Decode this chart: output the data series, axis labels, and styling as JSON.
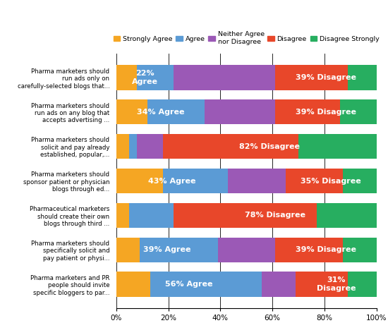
{
  "categories": [
    "Pharma marketers should\nrun ads only on\ncarefully-selected blogs that...",
    "Pharma marketers should\nrun ads on any blog that\naccepts advertising ...",
    "Pharma marketers should\nsolicit and pay already\nestablished, popular,...",
    "Pharma marketers should\nsponsor patient or physician\nblogs through ed...",
    "Pharmaceutical marketers\nshould create their own\nblogs through third ...",
    "Pharma marketers should\nspecifically solicit and\npay patient or physi...",
    "Pharma marketers and PR\npeople should invite\nspecific bloggers to par..."
  ],
  "segments": [
    {
      "strongly_agree": 8,
      "agree": 14,
      "neither": 39,
      "disagree": 28,
      "disagree_strongly": 11
    },
    {
      "strongly_agree": 12,
      "agree": 22,
      "neither": 27,
      "disagree": 25,
      "disagree_strongly": 14
    },
    {
      "strongly_agree": 5,
      "agree": 3,
      "neither": 10,
      "disagree": 52,
      "disagree_strongly": 30
    },
    {
      "strongly_agree": 18,
      "agree": 25,
      "neither": 22,
      "disagree": 22,
      "disagree_strongly": 13
    },
    {
      "strongly_agree": 5,
      "agree": 17,
      "neither": 0,
      "disagree": 55,
      "disagree_strongly": 23
    },
    {
      "strongly_agree": 9,
      "agree": 30,
      "neither": 22,
      "disagree": 26,
      "disagree_strongly": 13
    },
    {
      "strongly_agree": 13,
      "agree": 43,
      "neither": 13,
      "disagree": 20,
      "disagree_strongly": 11
    }
  ],
  "colors": {
    "strongly_agree": "#F5A623",
    "agree": "#5B9BD5",
    "neither": "#9B59B6",
    "disagree": "#E8472A",
    "disagree_strongly": "#27AE60"
  },
  "annotations": [
    {
      "bar": 0,
      "agree_pct": "22%\nAgree",
      "disagree_pct": "39% Disagree"
    },
    {
      "bar": 1,
      "agree_pct": "34% Agree",
      "disagree_pct": "39% Disagree"
    },
    {
      "bar": 2,
      "agree_pct": null,
      "disagree_pct": "82% Disagree"
    },
    {
      "bar": 3,
      "agree_pct": "43% Agree",
      "disagree_pct": "35% Disagree"
    },
    {
      "bar": 4,
      "agree_pct": null,
      "disagree_pct": "78% Disagree"
    },
    {
      "bar": 5,
      "agree_pct": "39% Agree",
      "disagree_pct": "39% Disagree"
    },
    {
      "bar": 6,
      "agree_pct": "56% Agree",
      "disagree_pct": "31%\nDisagree"
    }
  ],
  "legend_labels": [
    "Strongly Agree",
    "Agree",
    "Neither Agree\nnor Disagree",
    "Disagree",
    "Disagree Strongly"
  ],
  "legend_colors": [
    "#F5A623",
    "#5B9BD5",
    "#9B59B6",
    "#E8472A",
    "#27AE60"
  ],
  "xtick_labels": [
    "0%",
    "20%",
    "40%",
    "60%",
    "80%",
    "100%"
  ],
  "xtick_values": [
    0,
    20,
    40,
    60,
    80,
    100
  ],
  "background_color": "#FFFFFF",
  "bar_height": 0.72,
  "ann_fontsize": 8.0,
  "ytick_fontsize": 6.2,
  "xtick_fontsize": 7.5,
  "legend_fontsize": 6.8
}
